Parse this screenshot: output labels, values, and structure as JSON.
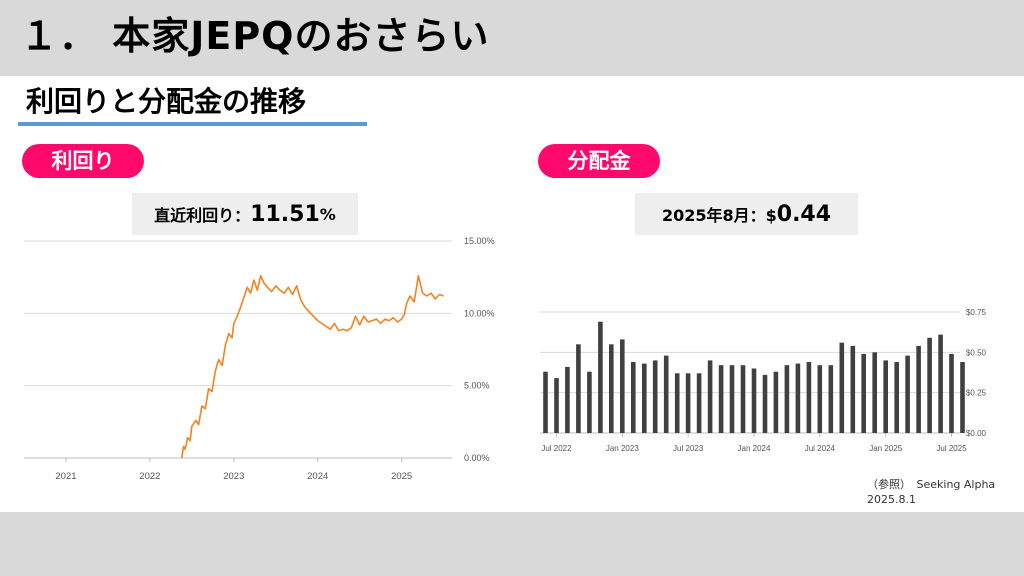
{
  "slide": {
    "title": "１． 本家JEPQのおさらい",
    "section_title": "利回りと分配金の推移"
  },
  "yield_panel": {
    "pill_label": "利回り",
    "headline_label": "直近利回り：",
    "headline_value": "11.51",
    "headline_unit": "%"
  },
  "dividend_panel": {
    "pill_label": "分配金",
    "headline_label": "2025年8月：$",
    "headline_value": "0.44"
  },
  "source": {
    "label": "（参照）　Seeking Alpha",
    "date": "2025.8.1"
  },
  "colors": {
    "title_band": "#d9d9d9",
    "pill": "#ff0a6c",
    "underline": "#5b9bd5",
    "yield_line": "#f58220",
    "bars": "#404040"
  },
  "chart_data": [
    {
      "type": "line",
      "title": "",
      "x_tick_labels": [
        "2021",
        "2022",
        "2023",
        "2024",
        "2025"
      ],
      "y_tick_labels": [
        "0.00%",
        "5.00%",
        "10.00%",
        "15.00%"
      ],
      "ylim": [
        0,
        15
      ],
      "y_axis_side": "right",
      "grid": true,
      "x_domain": [
        2020.5,
        2025.6
      ],
      "series": [
        {
          "color": "#f58220",
          "x": [
            2022.38,
            2022.4,
            2022.42,
            2022.45,
            2022.48,
            2022.5,
            2022.55,
            2022.58,
            2022.62,
            2022.66,
            2022.7,
            2022.74,
            2022.78,
            2022.82,
            2022.86,
            2022.9,
            2022.94,
            2022.98,
            2023.0,
            2023.04,
            2023.08,
            2023.12,
            2023.16,
            2023.2,
            2023.24,
            2023.28,
            2023.32,
            2023.36,
            2023.4,
            2023.45,
            2023.5,
            2023.55,
            2023.6,
            2023.65,
            2023.7,
            2023.75,
            2023.8,
            2023.85,
            2023.9,
            2023.95,
            2024.0,
            2024.05,
            2024.1,
            2024.15,
            2024.2,
            2024.25,
            2024.3,
            2024.35,
            2024.4,
            2024.45,
            2024.5,
            2024.55,
            2024.6,
            2024.65,
            2024.7,
            2024.75,
            2024.8,
            2024.85,
            2024.9,
            2024.95,
            2025.0,
            2025.03,
            2025.06,
            2025.1,
            2025.15,
            2025.2,
            2025.25,
            2025.3,
            2025.35,
            2025.4,
            2025.45,
            2025.5
          ],
          "y": [
            0.0,
            0.8,
            0.6,
            1.4,
            1.2,
            2.2,
            2.6,
            2.3,
            3.6,
            3.4,
            4.8,
            4.6,
            6.0,
            6.8,
            6.4,
            7.8,
            8.6,
            8.3,
            9.3,
            9.8,
            10.4,
            11.1,
            11.8,
            11.4,
            12.3,
            11.6,
            12.6,
            12.1,
            11.8,
            11.5,
            11.9,
            11.6,
            11.4,
            11.8,
            11.3,
            11.9,
            10.9,
            10.4,
            10.1,
            9.8,
            9.5,
            9.3,
            9.1,
            8.9,
            9.3,
            8.8,
            8.9,
            8.8,
            9.0,
            9.8,
            9.2,
            9.8,
            9.4,
            9.5,
            9.6,
            9.3,
            9.6,
            9.5,
            9.7,
            9.4,
            9.6,
            9.9,
            10.7,
            11.2,
            10.8,
            12.6,
            11.4,
            11.2,
            11.4,
            11.0,
            11.3,
            11.2
          ]
        }
      ]
    },
    {
      "type": "bar",
      "title": "",
      "categories": [
        "2022-06",
        "2022-07",
        "2022-08",
        "2022-09",
        "2022-10",
        "2022-11",
        "2022-12",
        "2023-01",
        "2023-02",
        "2023-03",
        "2023-04",
        "2023-05",
        "2023-06",
        "2023-07",
        "2023-08",
        "2023-09",
        "2023-10",
        "2023-11",
        "2023-12",
        "2024-01",
        "2024-02",
        "2024-03",
        "2024-04",
        "2024-05",
        "2024-06",
        "2024-07",
        "2024-08",
        "2024-09",
        "2024-10",
        "2024-11",
        "2024-12",
        "2025-01",
        "2025-02",
        "2025-03",
        "2025-04",
        "2025-05",
        "2025-06",
        "2025-07",
        "2025-08"
      ],
      "values": [
        0.38,
        0.34,
        0.41,
        0.55,
        0.38,
        0.69,
        0.55,
        0.58,
        0.44,
        0.43,
        0.45,
        0.48,
        0.37,
        0.37,
        0.37,
        0.45,
        0.42,
        0.42,
        0.42,
        0.4,
        0.36,
        0.38,
        0.42,
        0.43,
        0.44,
        0.42,
        0.42,
        0.56,
        0.54,
        0.49,
        0.5,
        0.45,
        0.44,
        0.48,
        0.54,
        0.59,
        0.61,
        0.49,
        0.44
      ],
      "x_tick_labels": [
        "Jul 2022",
        "Jan 2023",
        "Jul 2023",
        "Jan 2024",
        "Jul 2024",
        "Jan 2025",
        "Jul 2025"
      ],
      "y_tick_labels": [
        "$0.00",
        "$0.25",
        "$0.50",
        "$0.75"
      ],
      "ylim": [
        0,
        0.75
      ],
      "y_axis_side": "right",
      "grid": true
    }
  ]
}
